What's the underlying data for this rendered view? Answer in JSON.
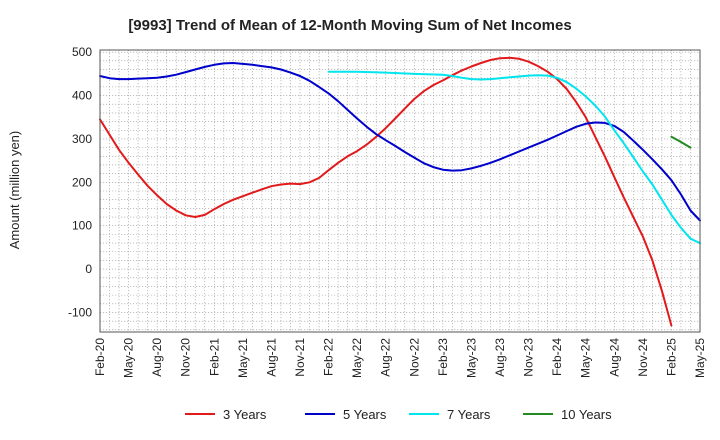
{
  "chart_data": {
    "type": "line",
    "title": "[9993]  Trend of Mean of 12-Month Moving Sum of Net Incomes",
    "xlabel": "",
    "ylabel": "Amount (million yen)",
    "ylim": [
      -145,
      505
    ],
    "yticks": [
      500,
      400,
      300,
      200,
      100,
      0,
      -100
    ],
    "x_range": [
      "2020-02",
      "2025-05"
    ],
    "xtick_labels": [
      "Feb-20",
      "May-20",
      "Aug-20",
      "Nov-20",
      "Feb-21",
      "May-21",
      "Aug-21",
      "Nov-21",
      "Feb-22",
      "May-22",
      "Aug-22",
      "Nov-22",
      "Feb-23",
      "May-23",
      "Aug-23",
      "Nov-23",
      "Feb-24",
      "May-24",
      "Aug-24",
      "Nov-24",
      "Feb-25",
      "May-25"
    ],
    "grid": true,
    "legend": "bottom",
    "series": [
      {
        "name": "3 Years",
        "color": "#e31a1c",
        "points": [
          [
            "2020-02",
            345
          ],
          [
            "2020-03",
            310
          ],
          [
            "2020-04",
            275
          ],
          [
            "2020-05",
            245
          ],
          [
            "2020-06",
            218
          ],
          [
            "2020-07",
            192
          ],
          [
            "2020-08",
            170
          ],
          [
            "2020-09",
            150
          ],
          [
            "2020-10",
            135
          ],
          [
            "2020-11",
            124
          ],
          [
            "2020-12",
            120
          ],
          [
            "2021-01",
            125
          ],
          [
            "2021-02",
            138
          ],
          [
            "2021-03",
            150
          ],
          [
            "2021-04",
            160
          ],
          [
            "2021-05",
            168
          ],
          [
            "2021-06",
            176
          ],
          [
            "2021-07",
            184
          ],
          [
            "2021-08",
            191
          ],
          [
            "2021-09",
            195
          ],
          [
            "2021-10",
            197
          ],
          [
            "2021-11",
            196
          ],
          [
            "2021-12",
            200
          ],
          [
            "2022-01",
            210
          ],
          [
            "2022-02",
            228
          ],
          [
            "2022-03",
            245
          ],
          [
            "2022-04",
            260
          ],
          [
            "2022-05",
            272
          ],
          [
            "2022-06",
            287
          ],
          [
            "2022-07",
            305
          ],
          [
            "2022-08",
            325
          ],
          [
            "2022-09",
            347
          ],
          [
            "2022-10",
            370
          ],
          [
            "2022-11",
            392
          ],
          [
            "2022-12",
            410
          ],
          [
            "2023-01",
            424
          ],
          [
            "2023-02",
            435
          ],
          [
            "2023-03",
            447
          ],
          [
            "2023-04",
            458
          ],
          [
            "2023-05",
            467
          ],
          [
            "2023-06",
            475
          ],
          [
            "2023-07",
            482
          ],
          [
            "2023-08",
            486
          ],
          [
            "2023-09",
            487
          ],
          [
            "2023-10",
            485
          ],
          [
            "2023-11",
            478
          ],
          [
            "2023-12",
            468
          ],
          [
            "2024-01",
            455
          ],
          [
            "2024-02",
            438
          ],
          [
            "2024-03",
            415
          ],
          [
            "2024-04",
            385
          ],
          [
            "2024-05",
            350
          ],
          [
            "2024-06",
            305
          ],
          [
            "2024-07",
            260
          ],
          [
            "2024-08",
            212
          ],
          [
            "2024-09",
            165
          ],
          [
            "2024-10",
            120
          ],
          [
            "2024-11",
            75
          ],
          [
            "2024-12",
            20
          ],
          [
            "2025-01",
            -50
          ],
          [
            "2025-02",
            -130
          ]
        ]
      },
      {
        "name": "5 Years",
        "color": "#0000cc",
        "points": [
          [
            "2020-02",
            445
          ],
          [
            "2020-03",
            440
          ],
          [
            "2020-04",
            438
          ],
          [
            "2020-05",
            438
          ],
          [
            "2020-06",
            439
          ],
          [
            "2020-07",
            440
          ],
          [
            "2020-08",
            441
          ],
          [
            "2020-09",
            444
          ],
          [
            "2020-10",
            448
          ],
          [
            "2020-11",
            454
          ],
          [
            "2020-12",
            460
          ],
          [
            "2021-01",
            466
          ],
          [
            "2021-02",
            471
          ],
          [
            "2021-03",
            474
          ],
          [
            "2021-04",
            475
          ],
          [
            "2021-05",
            473
          ],
          [
            "2021-06",
            471
          ],
          [
            "2021-07",
            468
          ],
          [
            "2021-08",
            465
          ],
          [
            "2021-09",
            460
          ],
          [
            "2021-10",
            453
          ],
          [
            "2021-11",
            445
          ],
          [
            "2021-12",
            434
          ],
          [
            "2022-01",
            420
          ],
          [
            "2022-02",
            405
          ],
          [
            "2022-03",
            387
          ],
          [
            "2022-04",
            367
          ],
          [
            "2022-05",
            347
          ],
          [
            "2022-06",
            328
          ],
          [
            "2022-07",
            311
          ],
          [
            "2022-08",
            297
          ],
          [
            "2022-09",
            284
          ],
          [
            "2022-10",
            270
          ],
          [
            "2022-11",
            257
          ],
          [
            "2022-12",
            244
          ],
          [
            "2023-01",
            235
          ],
          [
            "2023-02",
            229
          ],
          [
            "2023-03",
            227
          ],
          [
            "2023-04",
            228
          ],
          [
            "2023-05",
            232
          ],
          [
            "2023-06",
            238
          ],
          [
            "2023-07",
            245
          ],
          [
            "2023-08",
            253
          ],
          [
            "2023-09",
            262
          ],
          [
            "2023-10",
            271
          ],
          [
            "2023-11",
            280
          ],
          [
            "2023-12",
            289
          ],
          [
            "2024-01",
            298
          ],
          [
            "2024-02",
            308
          ],
          [
            "2024-03",
            318
          ],
          [
            "2024-04",
            328
          ],
          [
            "2024-05",
            335
          ],
          [
            "2024-06",
            338
          ],
          [
            "2024-07",
            337
          ],
          [
            "2024-08",
            330
          ],
          [
            "2024-09",
            316
          ],
          [
            "2024-10",
            296
          ],
          [
            "2024-11",
            275
          ],
          [
            "2024-12",
            253
          ],
          [
            "2025-01",
            230
          ],
          [
            "2025-02",
            205
          ],
          [
            "2025-03",
            172
          ],
          [
            "2025-04",
            135
          ],
          [
            "2025-05",
            112
          ]
        ]
      },
      {
        "name": "7 Years",
        "color": "#00e5ee",
        "points": [
          [
            "2022-02",
            455
          ],
          [
            "2022-05",
            455
          ],
          [
            "2022-08",
            453
          ],
          [
            "2022-11",
            450
          ],
          [
            "2023-02",
            448
          ],
          [
            "2023-03",
            445
          ],
          [
            "2023-04",
            441
          ],
          [
            "2023-05",
            438
          ],
          [
            "2023-06",
            437
          ],
          [
            "2023-07",
            438
          ],
          [
            "2023-08",
            440
          ],
          [
            "2023-09",
            442
          ],
          [
            "2023-10",
            444
          ],
          [
            "2023-11",
            446
          ],
          [
            "2023-12",
            447
          ],
          [
            "2024-01",
            446
          ],
          [
            "2024-02",
            441
          ],
          [
            "2024-03",
            431
          ],
          [
            "2024-04",
            416
          ],
          [
            "2024-05",
            398
          ],
          [
            "2024-06",
            377
          ],
          [
            "2024-07",
            352
          ],
          [
            "2024-08",
            320
          ],
          [
            "2024-09",
            290
          ],
          [
            "2024-10",
            258
          ],
          [
            "2024-11",
            225
          ],
          [
            "2024-12",
            195
          ],
          [
            "2025-01",
            160
          ],
          [
            "2025-02",
            125
          ],
          [
            "2025-03",
            95
          ],
          [
            "2025-04",
            70
          ],
          [
            "2025-05",
            60
          ]
        ]
      },
      {
        "name": "10 Years",
        "color": "#228b22",
        "points": [
          [
            "2025-02",
            305
          ],
          [
            "2025-03",
            293
          ],
          [
            "2025-04",
            280
          ]
        ]
      }
    ]
  }
}
